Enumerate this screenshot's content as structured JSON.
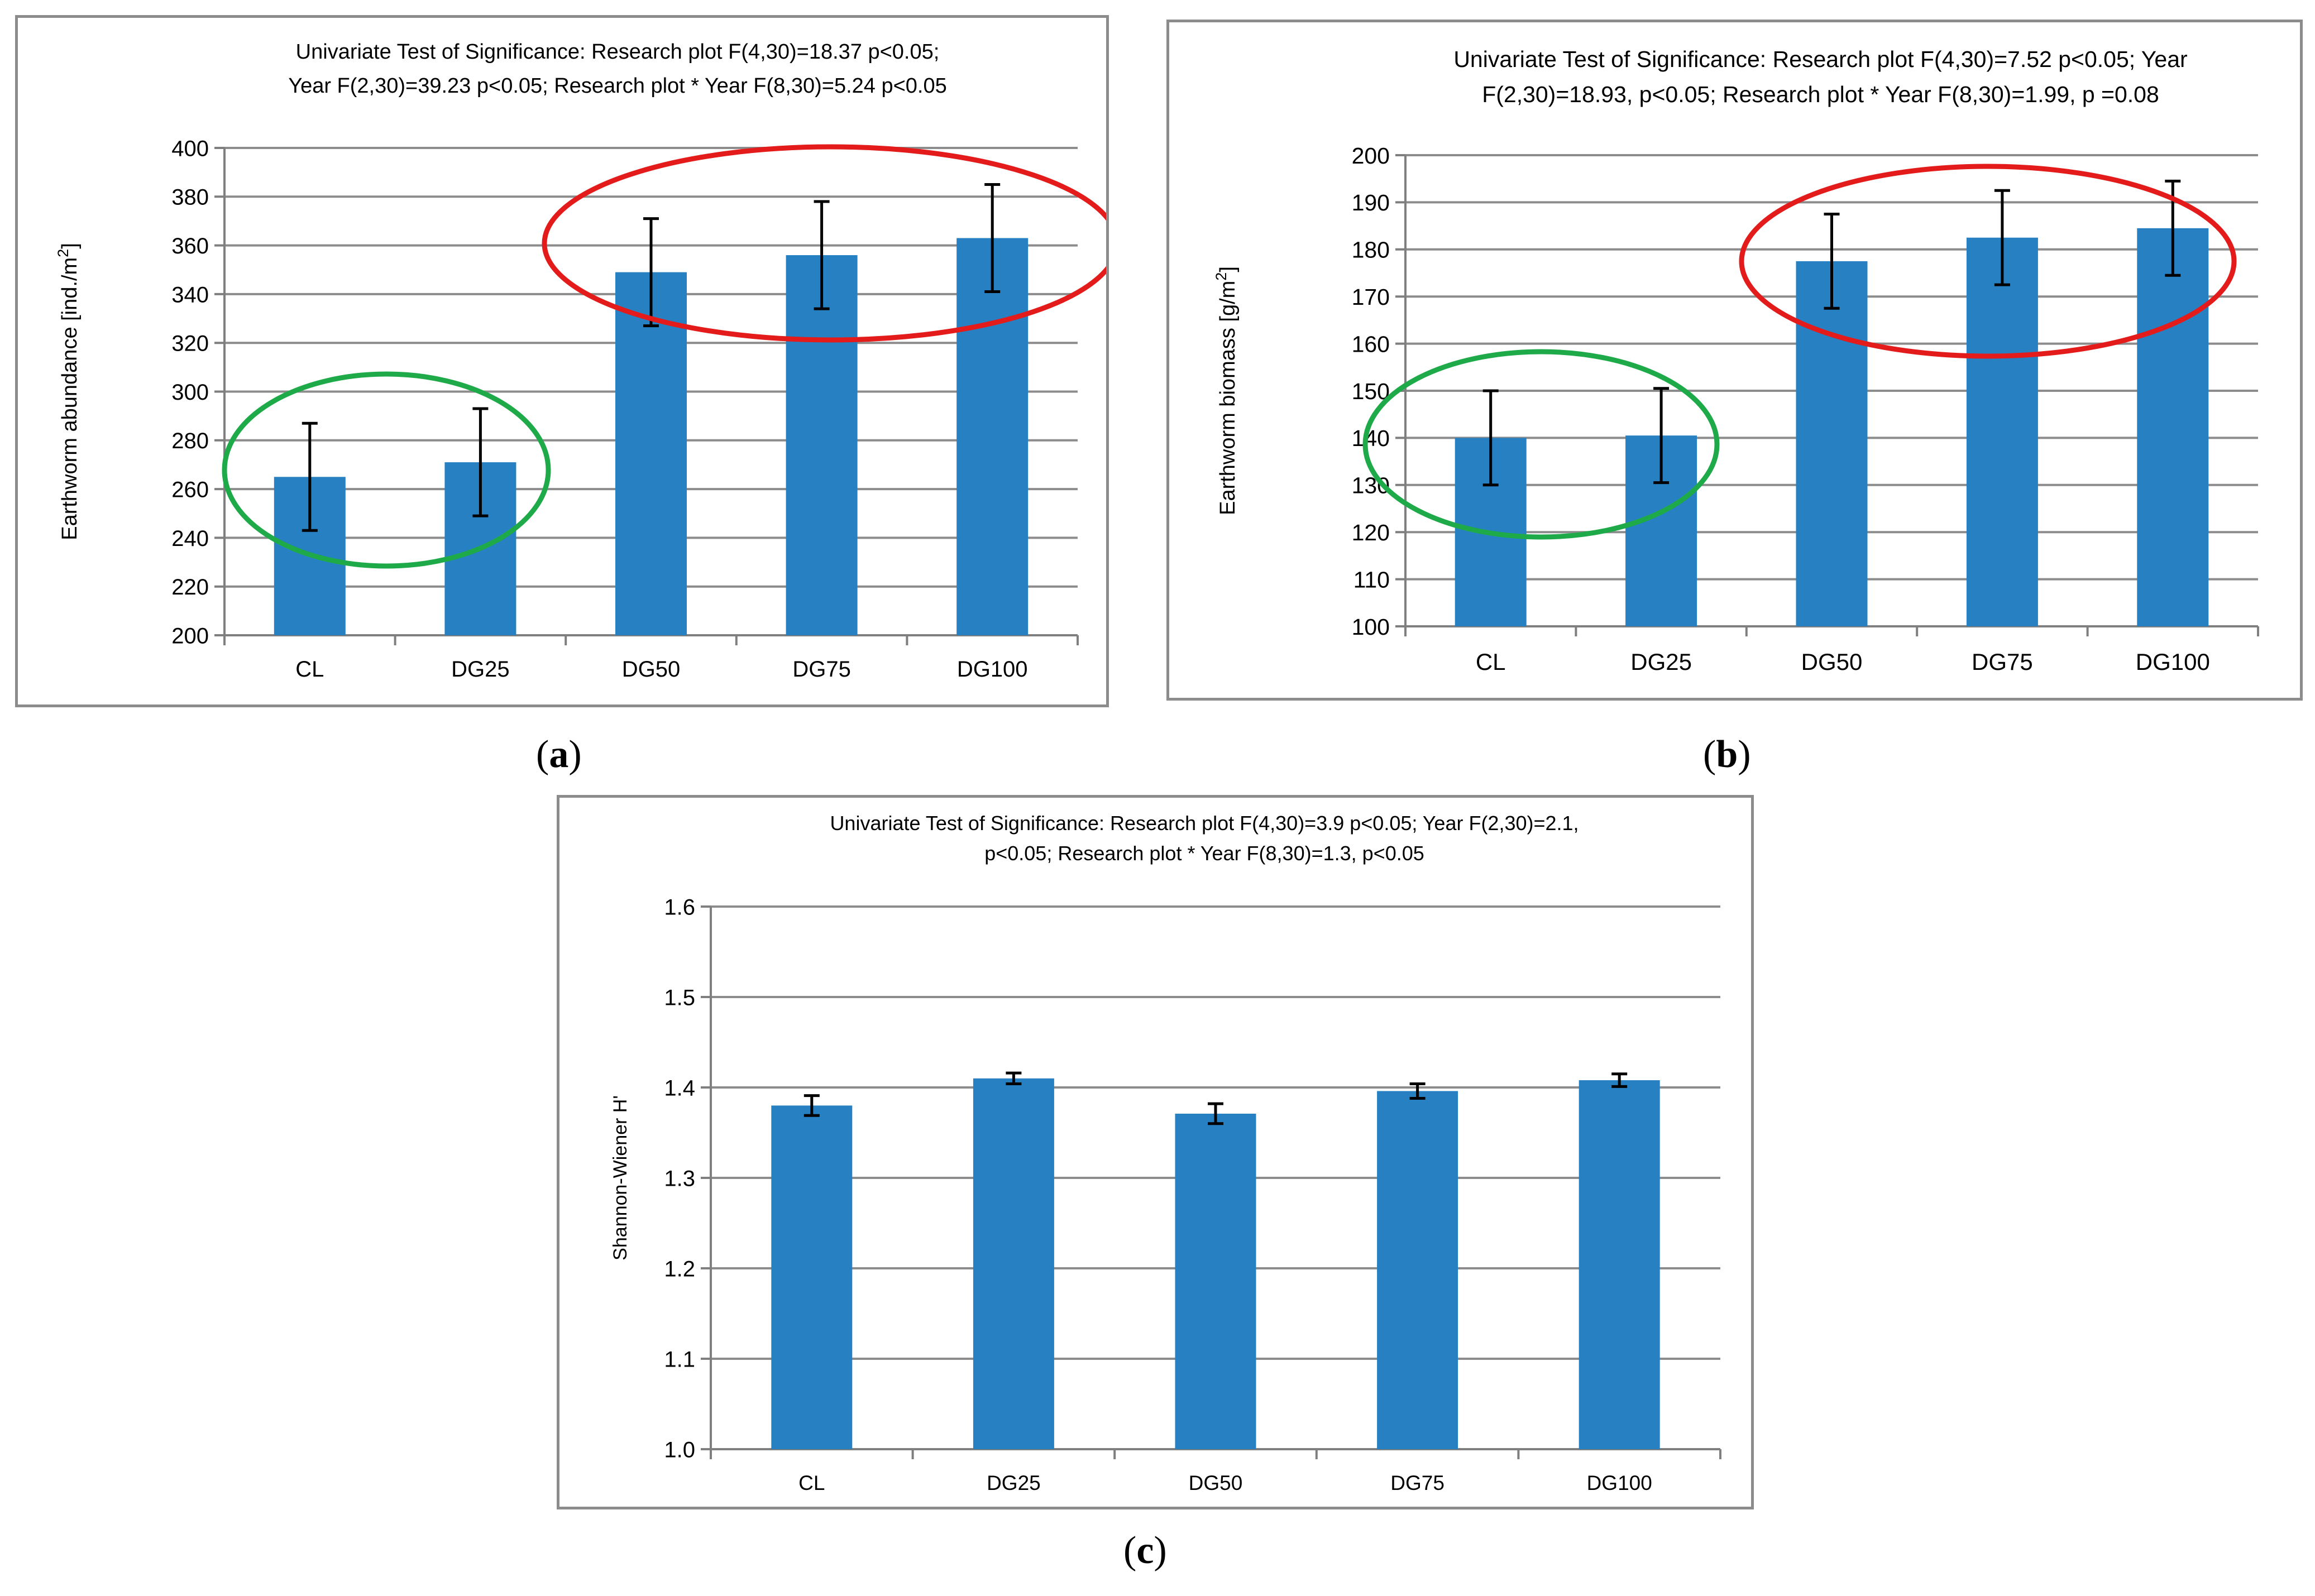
{
  "colors": {
    "bar": "#2680c2",
    "grid": "#8c8c8c",
    "axis": "#7f7f7f",
    "error": "#000000",
    "ellipse_green": "#1faa4a",
    "ellipse_red": "#e31b1b"
  },
  "captions": [
    "a",
    "b",
    "c"
  ],
  "chart_data": [
    {
      "type": "bar",
      "panel": "a",
      "title_lines": [
        "Univariate Test of Significance: Research plot F(4,30)=18.37 p<0.05;",
        "Year F(2,30)=39.23 p<0.05; Research plot * Year F(8,30)=5.24 p<0.05"
      ],
      "ylabel": "Earthworm abundance [ind./m",
      "ylabel_sup": "2",
      "ylabel_end": "]",
      "xlabel": "",
      "categories": [
        "CL",
        "DG25",
        "DG50",
        "DG75",
        "DG100"
      ],
      "values": [
        265,
        271,
        349,
        356,
        363
      ],
      "errors": [
        22,
        22,
        22,
        22,
        22
      ],
      "ylim": [
        200,
        400
      ],
      "yticks": [
        "200",
        "220",
        "240",
        "260",
        "280",
        "300",
        "320",
        "340",
        "360",
        "380",
        "400"
      ],
      "grid": true,
      "highlight_groups": [
        {
          "color": "green",
          "categories": [
            "CL",
            "DG25"
          ]
        },
        {
          "color": "red",
          "categories": [
            "DG50",
            "DG75",
            "DG100"
          ]
        }
      ]
    },
    {
      "type": "bar",
      "panel": "b",
      "title_lines": [
        "Univariate Test of Significance: Research plot F(4,30)=7.52 p<0.05; Year",
        "F(2,30)=18.93, p<0.05; Research plot * Year F(8,30)=1.99, p =0.08"
      ],
      "ylabel": "Earthworm biomass [g/m",
      "ylabel_sup": "2",
      "ylabel_end": "]",
      "xlabel": "",
      "categories": [
        "CL",
        "DG25",
        "DG50",
        "DG75",
        "DG100"
      ],
      "values": [
        140,
        140.5,
        177.5,
        182.5,
        184.5
      ],
      "errors": [
        10,
        10,
        10,
        10,
        10
      ],
      "ylim": [
        100,
        200
      ],
      "yticks": [
        "100",
        "110",
        "120",
        "130",
        "140",
        "150",
        "160",
        "170",
        "180",
        "190",
        "200"
      ],
      "grid": true,
      "highlight_groups": [
        {
          "color": "green",
          "categories": [
            "CL",
            "DG25"
          ]
        },
        {
          "color": "red",
          "categories": [
            "DG50",
            "DG75",
            "DG100"
          ]
        }
      ]
    },
    {
      "type": "bar",
      "panel": "c",
      "title_lines": [
        "Univariate Test of Significance: Research plot F(4,30)=3.9 p<0.05; Year F(2,30)=2.1,",
        "p<0.05; Research plot * Year F(8,30)=1.3, p<0.05"
      ],
      "ylabel": "Shannon-Wiener H'",
      "ylabel_sup": "",
      "ylabel_end": "",
      "xlabel": "",
      "categories": [
        "CL",
        "DG25",
        "DG50",
        "DG75",
        "DG100"
      ],
      "values": [
        1.38,
        1.41,
        1.371,
        1.396,
        1.408
      ],
      "errors": [
        0.011,
        0.006,
        0.011,
        0.008,
        0.007
      ],
      "ylim": [
        1.0,
        1.6
      ],
      "yticks": [
        "1.0",
        "1.1",
        "1.2",
        "1.3",
        "1.4",
        "1.5",
        "1.6"
      ],
      "grid": true,
      "highlight_groups": []
    }
  ]
}
